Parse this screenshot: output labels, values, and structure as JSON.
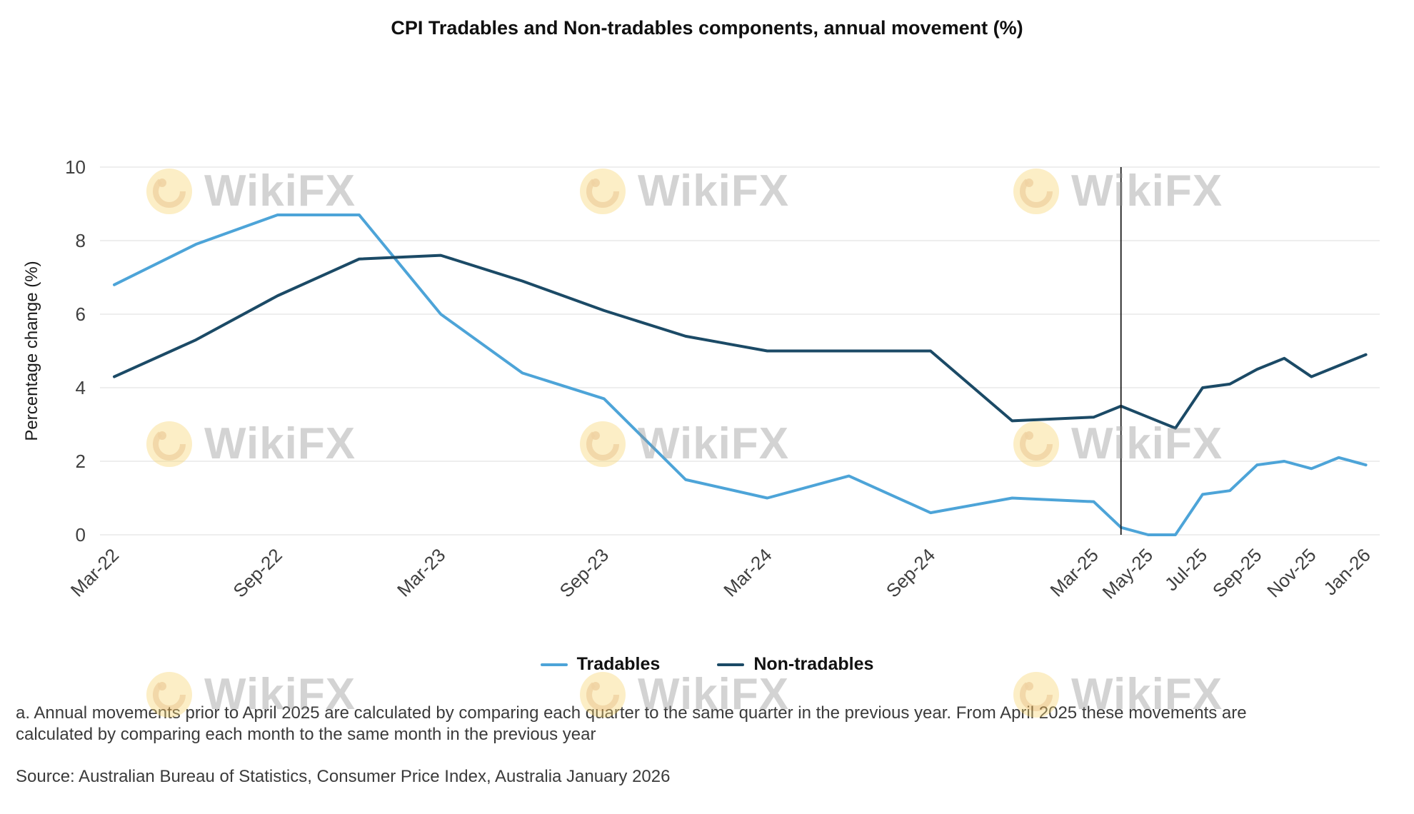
{
  "title": "CPI Tradables and Non-tradables components, annual movement (%)",
  "watermark": {
    "text": "WikiFX"
  },
  "chart_data": {
    "type": "line",
    "ylabel": "Percentage change (%)",
    "ylim": [
      0,
      10
    ],
    "yticks": [
      0,
      2,
      4,
      6,
      8,
      10
    ],
    "grid": "horizontal",
    "legend_position": "bottom-center",
    "x_unit": "months since Mar-2022",
    "x": [
      0,
      3,
      6,
      9,
      12,
      15,
      18,
      21,
      24,
      27,
      30,
      33,
      36,
      37,
      38,
      39,
      40,
      41,
      42,
      43,
      44,
      45,
      46
    ],
    "point_labels": [
      "Mar-22",
      "Jun-22",
      "Sep-22",
      "Dec-22",
      "Mar-23",
      "Jun-23",
      "Sep-23",
      "Dec-23",
      "Mar-24",
      "Jun-24",
      "Sep-24",
      "Dec-24",
      "Mar-25",
      "Apr-25",
      "May-25",
      "Jun-25",
      "Jul-25",
      "Aug-25",
      "Sep-25",
      "Oct-25",
      "Nov-25",
      "Dec-25",
      "Jan-26"
    ],
    "x_ticks": [
      {
        "label": "Mar-22",
        "month": 0
      },
      {
        "label": "Sep-22",
        "month": 6
      },
      {
        "label": "Mar-23",
        "month": 12
      },
      {
        "label": "Sep-23",
        "month": 18
      },
      {
        "label": "Mar-24",
        "month": 24
      },
      {
        "label": "Sep-24",
        "month": 30
      },
      {
        "label": "Mar-25",
        "month": 36
      },
      {
        "label": "May-25",
        "month": 38
      },
      {
        "label": "Jul-25",
        "month": 40
      },
      {
        "label": "Sep-25",
        "month": 42
      },
      {
        "label": "Nov-25",
        "month": 44
      },
      {
        "label": "Jan-26",
        "month": 46
      }
    ],
    "series": [
      {
        "name": "Tradables",
        "color": "#4da4d8",
        "values": [
          6.8,
          7.9,
          8.7,
          8.7,
          6.0,
          4.4,
          3.7,
          1.5,
          1.0,
          1.6,
          0.6,
          1.0,
          0.9,
          0.2,
          0.0,
          0.0,
          1.1,
          1.2,
          1.9,
          2.0,
          1.8,
          2.1,
          1.9
        ]
      },
      {
        "name": "Non-tradables",
        "color": "#1b4a66",
        "values": [
          4.3,
          5.3,
          6.5,
          7.5,
          7.6,
          6.9,
          6.1,
          5.4,
          5.0,
          5.0,
          5.0,
          3.1,
          3.2,
          3.5,
          3.2,
          2.9,
          4.0,
          4.1,
          4.5,
          4.8,
          4.3,
          4.6,
          4.9
        ]
      }
    ],
    "marker_line": {
      "month": 37
    }
  },
  "footnote": "a. Annual movements prior to April 2025 are calculated by comparing each quarter to the same quarter in the previous year.  From April 2025 these movements are calculated by comparing each month to the same month in the previous year",
  "source": "Source: Australian Bureau of Statistics, Consumer Price Index, Australia January 2026"
}
